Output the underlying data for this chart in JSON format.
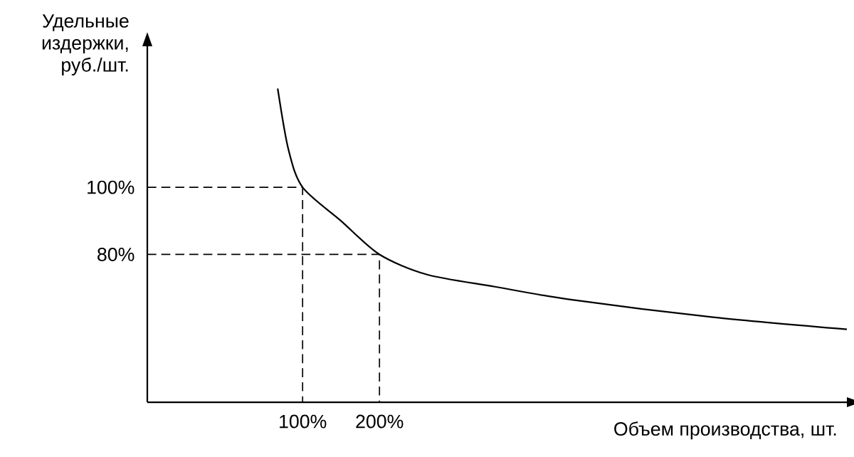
{
  "chart_data": {
    "type": "line",
    "xlabel": "Объем производства, шт.",
    "ylabel": "Удельные издержки, руб./шт.",
    "xlim": [
      -102,
      808
    ],
    "ylim": [
      36,
      142
    ],
    "xticks": [
      {
        "value": 100,
        "label": "100%"
      },
      {
        "value": 200,
        "label": "200%"
      }
    ],
    "yticks": [
      {
        "value": 80,
        "label": "80%"
      },
      {
        "value": 100,
        "label": "100%"
      }
    ],
    "series": [
      {
        "color": "#000000",
        "line_style": "solid",
        "x": [
          67.6,
          81.5,
          100,
          150,
          200,
          262,
          350,
          447,
          634,
          808
        ],
        "values": [
          129.4,
          111.3,
          100,
          90,
          80,
          74,
          70.4,
          66.6,
          61.3,
          57.7
        ]
      },
      {
        "color": "#000000",
        "line_style": "dashed",
        "x": [
          -102,
          100,
          100
        ],
        "values": [
          100,
          100,
          36
        ]
      },
      {
        "color": "#000000",
        "line_style": "dashed",
        "x": [
          -102,
          200,
          200
        ],
        "values": [
          80,
          80,
          36
        ]
      }
    ]
  }
}
